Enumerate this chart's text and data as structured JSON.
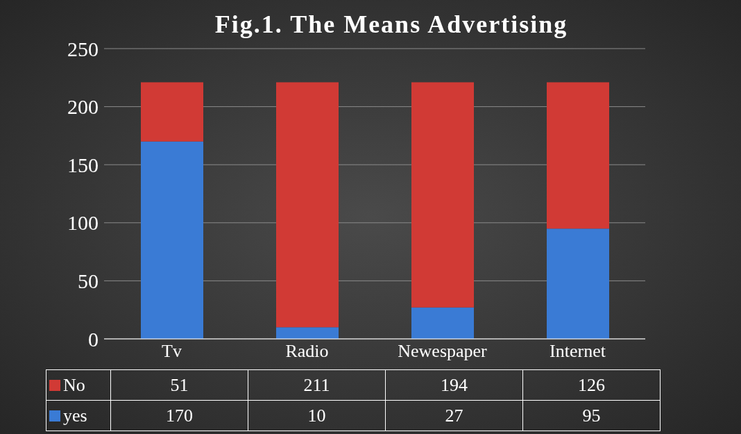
{
  "chart_data": {
    "type": "bar",
    "title": "Fig.1. The Means Advertising",
    "categories": [
      "Tv",
      "Radio",
      "Newespaper",
      "Internet"
    ],
    "series": [
      {
        "name": "yes",
        "color": "#3a7bd5",
        "values": [
          170,
          10,
          27,
          95
        ]
      },
      {
        "name": "No",
        "color": "#d13a35",
        "values": [
          51,
          211,
          194,
          126
        ]
      }
    ],
    "stacked": true,
    "ylim": [
      0,
      250
    ],
    "yticks": [
      0,
      50,
      100,
      150,
      200,
      250
    ],
    "grid": "y",
    "legend": "bottom",
    "data_labels": true
  }
}
